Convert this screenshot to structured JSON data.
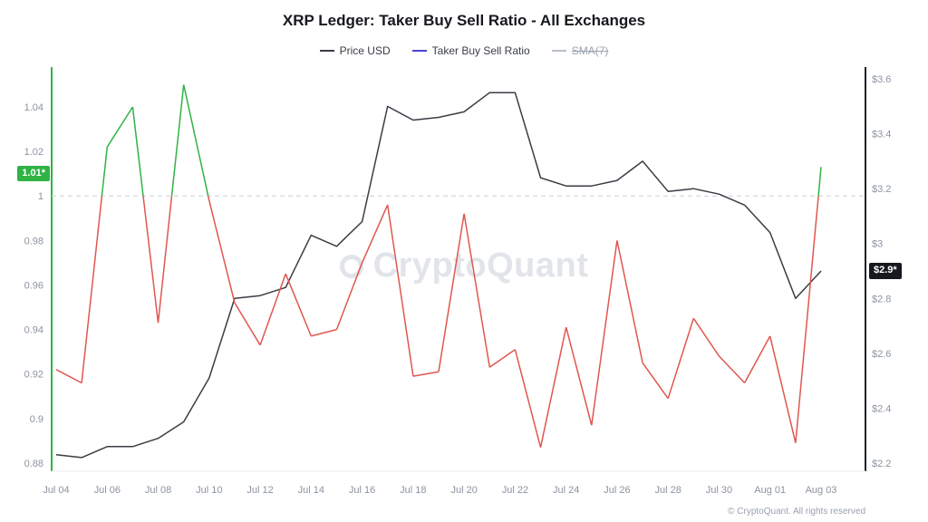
{
  "header": {
    "title": "XRP Ledger: Taker Buy Sell Ratio - All Exchanges"
  },
  "legend": [
    {
      "label": "Price USD",
      "color": "#3a3d44",
      "disabled": false
    },
    {
      "label": "Taker Buy Sell Ratio",
      "color": "#4944d2",
      "disabled": false
    },
    {
      "label": "SMA(7)",
      "color": "#b9bfc9",
      "disabled": true
    }
  ],
  "watermark": {
    "text": "CryptoQuant"
  },
  "footer": {
    "copyright": "© CryptoQuant. All rights reserved"
  },
  "axis_badges": {
    "left": {
      "text": "1.01*",
      "value": 1.01,
      "color": "#2fb344"
    },
    "right": {
      "text": "$2.9*",
      "value": 2.9,
      "color": "#17191e"
    }
  },
  "chart_data": {
    "type": "line",
    "title": "XRP Ledger: Taker Buy Sell Ratio - All Exchanges",
    "grid": false,
    "legend_position": "top",
    "x": [
      "Jul 04",
      "Jul 05",
      "Jul 06",
      "Jul 07",
      "Jul 08",
      "Jul 09",
      "Jul 10",
      "Jul 11",
      "Jul 12",
      "Jul 13",
      "Jul 14",
      "Jul 15",
      "Jul 16",
      "Jul 17",
      "Jul 18",
      "Jul 19",
      "Jul 20",
      "Jul 21",
      "Jul 22",
      "Jul 23",
      "Jul 24",
      "Jul 25",
      "Jul 26",
      "Jul 27",
      "Jul 28",
      "Jul 29",
      "Jul 30",
      "Jul 31",
      "Aug 01",
      "Aug 02",
      "Aug 03"
    ],
    "x_tick_labels": [
      "Jul 04",
      "Jul 06",
      "Jul 08",
      "Jul 10",
      "Jul 12",
      "Jul 14",
      "Jul 16",
      "Jul 18",
      "Jul 20",
      "Jul 22",
      "Jul 24",
      "Jul 26",
      "Jul 28",
      "Jul 30",
      "Aug 01",
      "Aug 03"
    ],
    "left_axis": {
      "name": "Taker Buy Sell Ratio",
      "min": 0.8763,
      "max": 1.0563,
      "tick_values": [
        0.88,
        0.9,
        0.92,
        0.94,
        0.96,
        0.98,
        1,
        1.02,
        1.04
      ],
      "tick_labels": [
        "0.88",
        "0.9",
        "0.92",
        "0.94",
        "0.96",
        "0.98",
        "1",
        "1.02",
        "1.04"
      ]
    },
    "right_axis": {
      "name": "Price USD",
      "min": 2.17,
      "max": 3.63,
      "tick_values": [
        2.2,
        2.4,
        2.6,
        2.8,
        3.0,
        3.2,
        3.4,
        3.6
      ],
      "tick_labels": [
        "$2.2",
        "$2.4",
        "$2.6",
        "$2.8",
        "$3",
        "$3.2",
        "$3.4",
        "$3.6"
      ]
    },
    "reference_line": {
      "axis": "left",
      "value": 1
    },
    "series": [
      {
        "name": "Price USD",
        "axis": "right",
        "color": "#3a3d44",
        "values": [
          2.23,
          2.22,
          2.26,
          2.26,
          2.29,
          2.35,
          2.51,
          2.8,
          2.81,
          2.84,
          3.03,
          2.99,
          3.08,
          3.5,
          3.45,
          3.46,
          3.48,
          3.55,
          3.55,
          3.24,
          3.21,
          3.21,
          3.23,
          3.3,
          3.19,
          3.2,
          3.18,
          3.14,
          3.04,
          2.8,
          2.9
        ]
      },
      {
        "name": "Taker Buy Sell Ratio",
        "axis": "left",
        "split_at": 1,
        "color_up": "#2fb344",
        "color_down": "#e0564f",
        "values": [
          0.922,
          0.916,
          1.022,
          1.04,
          0.943,
          1.05,
          0.998,
          0.952,
          0.933,
          0.965,
          0.937,
          0.94,
          0.97,
          0.996,
          0.919,
          0.921,
          0.992,
          0.923,
          0.931,
          0.887,
          0.941,
          0.897,
          0.98,
          0.925,
          0.909,
          0.945,
          0.928,
          0.916,
          0.937,
          0.889,
          1.013
        ]
      }
    ]
  }
}
